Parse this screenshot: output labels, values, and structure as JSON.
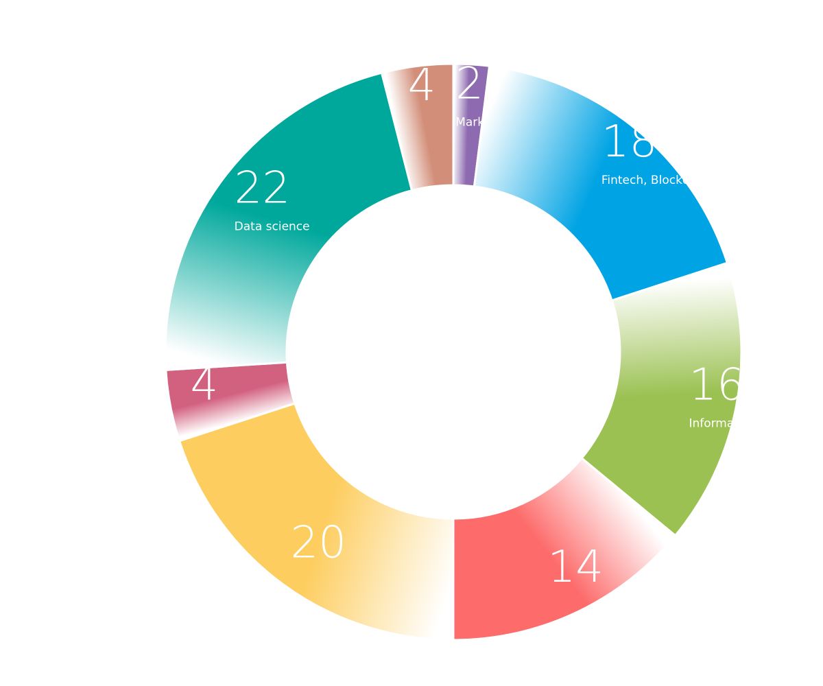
{
  "chart_data": {
    "type": "donut",
    "categories": [
      "Marketing",
      "Fintech, Blockchain",
      "Information technology",
      null,
      null,
      null,
      "Data science",
      null
    ],
    "values": [
      2,
      18,
      16,
      14,
      20,
      4,
      22,
      4
    ],
    "colors": [
      "#8e6bb0",
      "#00a3e4",
      "#9bc152",
      "#fd6b6b",
      "#fdcd5f",
      "#d2607f",
      "#00a89c",
      "#d28e78"
    ]
  }
}
